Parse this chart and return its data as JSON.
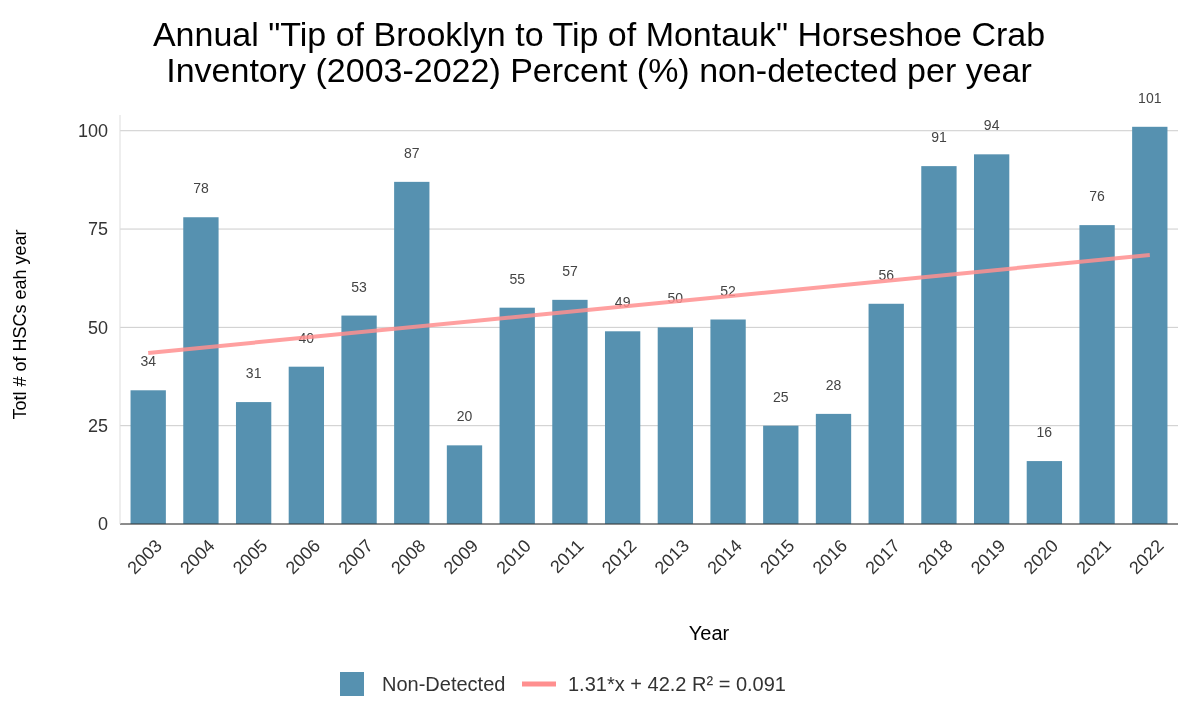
{
  "chart_data": {
    "type": "bar",
    "title": "Annual \"Tip of Brooklyn to Tip of Montauk\" Horseshoe Crab Inventory (2003-2022) Percent (%) non-detected per year",
    "xlabel": "Year",
    "ylabel": "Totl # of HSCs eah year",
    "categories": [
      "2003",
      "2004",
      "2005",
      "2006",
      "2007",
      "2008",
      "2009",
      "2010",
      "2011",
      "2012",
      "2013",
      "2014",
      "2015",
      "2016",
      "2017",
      "2018",
      "2019",
      "2020",
      "2021",
      "2022"
    ],
    "series": [
      {
        "name": "Non-Detected",
        "color": "#5691b0",
        "values": [
          34,
          78,
          31,
          40,
          53,
          87,
          20,
          55,
          57,
          49,
          50,
          52,
          25,
          28,
          56,
          91,
          94,
          16,
          76,
          101
        ],
        "value_labels": [
          "34",
          "78",
          "31",
          "40",
          "53",
          "87",
          "20",
          "55",
          "57",
          "49",
          "50",
          "52",
          "25",
          "28",
          "56",
          "91",
          "94",
          "16",
          "76",
          "101"
        ]
      },
      {
        "name": "1.31*x + 42.2 R² = 0.091",
        "type": "line",
        "color": "#ff8f8f",
        "values": [
          43.5,
          null,
          null,
          null,
          null,
          null,
          null,
          null,
          null,
          null,
          null,
          null,
          null,
          null,
          null,
          null,
          null,
          null,
          null,
          68.4
        ]
      }
    ],
    "ylim": [
      0,
      104
    ],
    "yticks": [
      0,
      25,
      50,
      75,
      100
    ],
    "grid": "y",
    "legend": "bottom"
  }
}
